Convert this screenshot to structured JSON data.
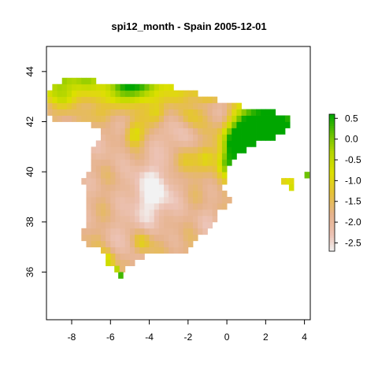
{
  "chart_data": {
    "type": "heatmap",
    "title": "spi12_month - Spain 2005-12-01",
    "xlabel": "",
    "ylabel": "",
    "xlim": [
      -9.3,
      4.3
    ],
    "ylim": [
      34.1,
      45.0
    ],
    "x_ticks": [
      -8,
      -6,
      -4,
      -2,
      0,
      2,
      4
    ],
    "x_tick_labels": [
      "-8",
      "-6",
      "-4",
      "-2",
      "0",
      "2",
      "4"
    ],
    "y_ticks": [
      36,
      38,
      40,
      42,
      44
    ],
    "y_tick_labels": [
      "36",
      "38",
      "40",
      "42",
      "44"
    ],
    "grid": false,
    "legend": {
      "placement": "right",
      "range": [
        -2.7,
        0.6
      ],
      "ticks": [
        0.5,
        0.0,
        -0.5,
        -1.0,
        -1.5,
        -2.0,
        -2.5
      ],
      "tick_labels": [
        "0.5",
        "0.0",
        "-0.5",
        "-1.0",
        "-1.5",
        "-2.0",
        "-2.5"
      ]
    },
    "color_scale": [
      {
        "value": -2.7,
        "color": "#f2f2f2"
      },
      {
        "value": -2.3,
        "color": "#ecc2b4"
      },
      {
        "value": -1.8,
        "color": "#e6b38c"
      },
      {
        "value": -1.3,
        "color": "#e6c23a"
      },
      {
        "value": -0.8,
        "color": "#dde000"
      },
      {
        "value": -0.3,
        "color": "#b3d600"
      },
      {
        "value": 0.1,
        "color": "#6cc200"
      },
      {
        "value": 0.6,
        "color": "#00a600"
      }
    ],
    "cell_size_deg": 0.25
  }
}
